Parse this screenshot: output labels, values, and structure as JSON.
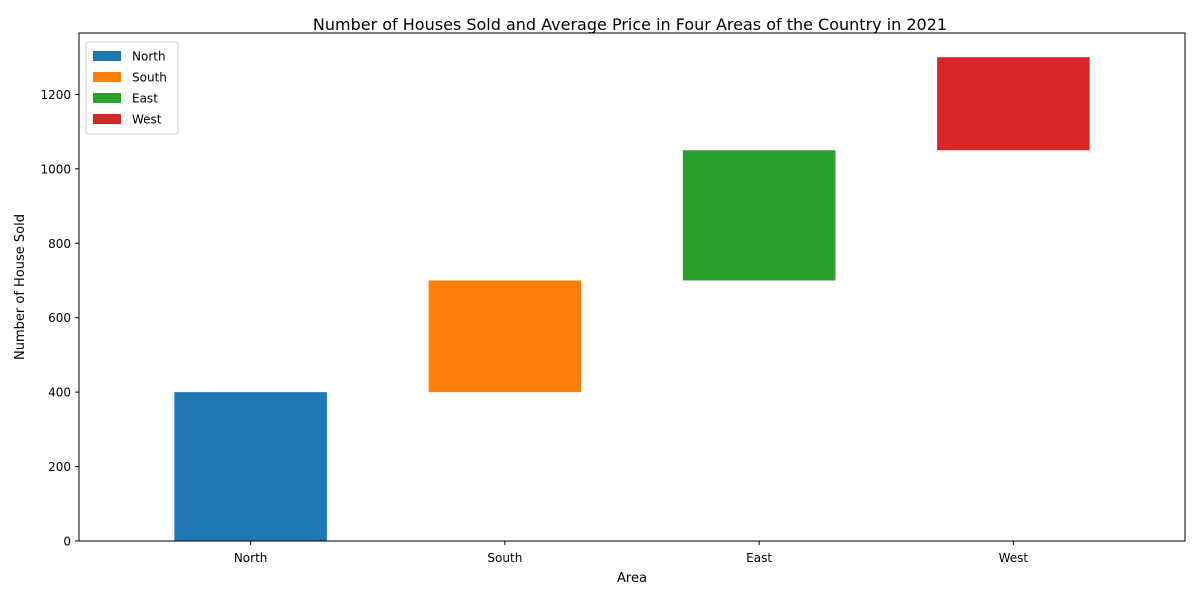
{
  "chart_data": {
    "type": "bar",
    "subtype": "waterfall",
    "title": "Number of Houses Sold and Average Price in Four Areas of the Country in 2021",
    "xlabel": "Area",
    "ylabel": "Number of House Sold",
    "categories": [
      "North",
      "South",
      "East",
      "West"
    ],
    "series": [
      {
        "name": "North",
        "base": 0,
        "value": 400,
        "color": "#1f77b4"
      },
      {
        "name": "South",
        "base": 400,
        "value": 300,
        "color": "#ff7f0e"
      },
      {
        "name": "East",
        "base": 700,
        "value": 350,
        "color": "#2ca02c"
      },
      {
        "name": "West",
        "base": 1050,
        "value": 250,
        "color": "#d62728"
      }
    ],
    "ylim": [
      0,
      1365
    ],
    "yticks": [
      0,
      200,
      400,
      600,
      800,
      1000,
      1200
    ],
    "grid": false,
    "legend_position": "top-left"
  }
}
